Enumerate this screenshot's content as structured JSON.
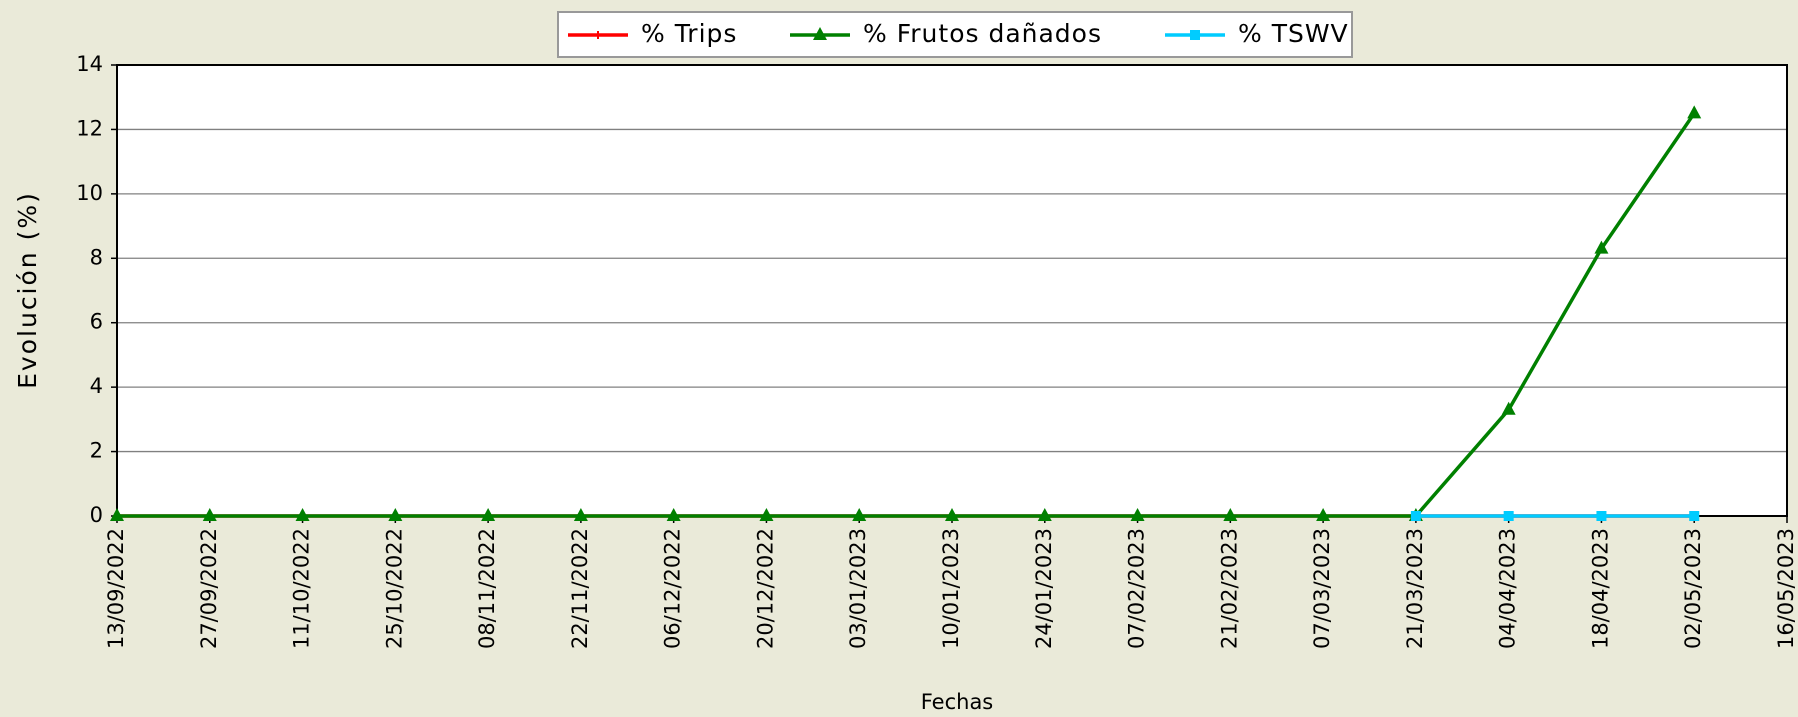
{
  "chart_data": {
    "type": "line",
    "categories": [
      "13/09/2022",
      "27/09/2022",
      "11/10/2022",
      "25/10/2022",
      "08/11/2022",
      "22/11/2022",
      "06/12/2022",
      "20/12/2022",
      "03/01/2023",
      "10/01/2023",
      "24/01/2023",
      "07/02/2023",
      "21/02/2023",
      "07/03/2023",
      "21/03/2023",
      "04/04/2023",
      "18/04/2023",
      "02/05/2023",
      "16/05/2023"
    ],
    "series": [
      {
        "name": "% Trips",
        "color": "#ff0000",
        "marker": "plus",
        "values": [
          0,
          0,
          0,
          0,
          0,
          0,
          0,
          0,
          0,
          0,
          0,
          0,
          0,
          0,
          0,
          0,
          0,
          0,
          null
        ]
      },
      {
        "name": "% Frutos dañados",
        "color": "#008000",
        "marker": "triangle",
        "values": [
          0,
          0,
          0,
          0,
          0,
          0,
          0,
          0,
          0,
          0,
          0,
          0,
          0,
          0,
          0,
          3.3,
          8.3,
          12.5,
          null
        ]
      },
      {
        "name": "% TSWV",
        "color": "#00ccff",
        "marker": "square",
        "values": [
          null,
          null,
          null,
          null,
          null,
          null,
          null,
          null,
          null,
          null,
          null,
          null,
          null,
          null,
          0,
          0,
          0,
          0,
          null
        ]
      }
    ],
    "ylim": [
      0,
      14
    ],
    "yticks": [
      0,
      2,
      4,
      6,
      8,
      10,
      12,
      14
    ],
    "grid": true,
    "x_label": "Fechas",
    "y_label": "Evolución (%)",
    "legend": "top"
  }
}
